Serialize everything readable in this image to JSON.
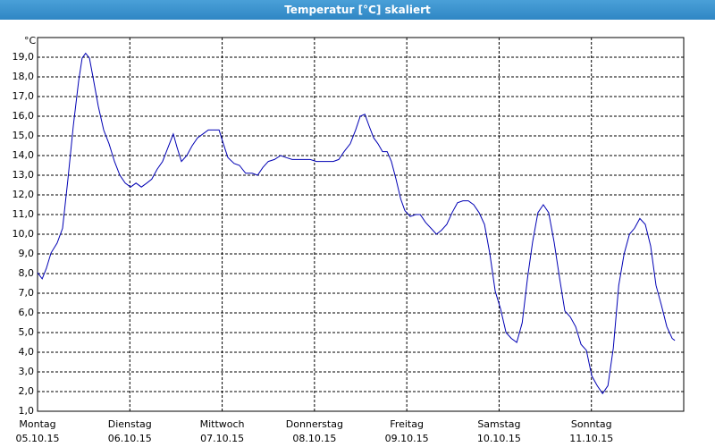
{
  "chart_data": {
    "type": "line",
    "title": "Temperatur [°C] skaliert",
    "y_unit": "°C",
    "grid": true,
    "ylim": [
      1,
      20
    ],
    "xlim": [
      0,
      168
    ],
    "yticks": [
      {
        "value": 1,
        "label": "1,0"
      },
      {
        "value": 2,
        "label": "2,0"
      },
      {
        "value": 3,
        "label": "3,0"
      },
      {
        "value": 4,
        "label": "4,0"
      },
      {
        "value": 5,
        "label": "5,0"
      },
      {
        "value": 6,
        "label": "6,0"
      },
      {
        "value": 7,
        "label": "7,0"
      },
      {
        "value": 8,
        "label": "8,0"
      },
      {
        "value": 9,
        "label": "9,0"
      },
      {
        "value": 10,
        "label": "10,0"
      },
      {
        "value": 11,
        "label": "11,0"
      },
      {
        "value": 12,
        "label": "12,0"
      },
      {
        "value": 13,
        "label": "13,0"
      },
      {
        "value": 14,
        "label": "14,0"
      },
      {
        "value": 15,
        "label": "15,0"
      },
      {
        "value": 16,
        "label": "16,0"
      },
      {
        "value": 17,
        "label": "17,0"
      },
      {
        "value": 18,
        "label": "18,0"
      },
      {
        "value": 19,
        "label": "19,0"
      }
    ],
    "xticks": [
      {
        "value": 0,
        "label": "Montag"
      },
      {
        "value": 24,
        "label": "Dienstag"
      },
      {
        "value": 48,
        "label": "Mittwoch"
      },
      {
        "value": 72,
        "label": "Donnerstag"
      },
      {
        "value": 96,
        "label": "Freitag"
      },
      {
        "value": 120,
        "label": "Samstag"
      },
      {
        "value": 144,
        "label": "Sonntag"
      }
    ],
    "xtick_dates": [
      "05.10.15",
      "06.10.15",
      "07.10.15",
      "08.10.15",
      "09.10.15",
      "10.10.15",
      "11.10.15"
    ],
    "x": [
      0,
      1.2,
      2.3,
      3.5,
      5.1,
      6.5,
      7.9,
      9.3,
      10.7,
      11.6,
      12.5,
      13.5,
      14.6,
      15.8,
      17.2,
      18.6,
      20.0,
      21.4,
      22.8,
      24.2,
      25.6,
      27.0,
      28.4,
      29.7,
      31.1,
      32.5,
      33.9,
      35.3,
      36.3,
      37.4,
      38.8,
      40.2,
      41.6,
      43.0,
      44.4,
      46.0,
      47.2,
      48.3,
      49.5,
      51.1,
      52.5,
      54.1,
      55.8,
      57.2,
      58.6,
      60.0,
      61.6,
      63.2,
      64.6,
      66.2,
      67.9,
      69.3,
      70.9,
      72.5,
      73.9,
      75.5,
      76.9,
      78.3,
      79.7,
      81.3,
      82.7,
      83.9,
      85.1,
      86.2,
      87.4,
      88.5,
      89.7,
      90.9,
      92.0,
      93.2,
      94.4,
      95.5,
      96.9,
      98.3,
      99.5,
      100.9,
      102.3,
      103.7,
      105.0,
      106.4,
      107.8,
      109.2,
      110.6,
      112.0,
      113.4,
      114.8,
      116.2,
      117.6,
      119.0,
      120.4,
      121.8,
      123.2,
      124.6,
      126.0,
      127.4,
      128.7,
      130.1,
      131.5,
      132.9,
      134.3,
      135.7,
      137.1,
      138.5,
      139.9,
      141.3,
      142.7,
      144.1,
      145.5,
      146.9,
      148.3,
      149.7,
      151.1,
      152.5,
      153.9,
      155.2,
      156.6,
      158.0,
      159.4,
      160.8,
      162.2,
      163.6,
      165.0,
      165.7
    ],
    "series": [
      {
        "name": "Temperatur",
        "color": "#0000b4",
        "values": [
          8.05,
          7.73,
          8.27,
          9.05,
          9.55,
          10.3,
          12.8,
          15.5,
          17.8,
          18.95,
          19.2,
          18.95,
          17.8,
          16.5,
          15.3,
          14.6,
          13.7,
          13.0,
          12.6,
          12.4,
          12.6,
          12.4,
          12.6,
          12.8,
          13.3,
          13.7,
          14.4,
          15.1,
          14.4,
          13.7,
          14.0,
          14.5,
          14.9,
          15.1,
          15.3,
          15.3,
          15.3,
          14.6,
          13.9,
          13.6,
          13.5,
          13.1,
          13.1,
          13.0,
          13.4,
          13.7,
          13.8,
          14.0,
          13.9,
          13.8,
          13.8,
          13.8,
          13.8,
          13.7,
          13.7,
          13.7,
          13.7,
          13.8,
          14.2,
          14.6,
          15.3,
          16.0,
          16.1,
          15.5,
          14.9,
          14.6,
          14.2,
          14.2,
          13.7,
          12.8,
          11.8,
          11.2,
          10.9,
          11.0,
          11.0,
          10.6,
          10.3,
          10.0,
          10.2,
          10.5,
          11.1,
          11.6,
          11.7,
          11.7,
          11.5,
          11.1,
          10.5,
          9.0,
          7.1,
          6.2,
          5.0,
          4.7,
          4.5,
          5.5,
          7.8,
          9.6,
          11.1,
          11.5,
          11.1,
          9.6,
          7.8,
          6.1,
          5.8,
          5.3,
          4.4,
          4.1,
          2.8,
          2.3,
          1.9,
          2.3,
          4.2,
          7.4,
          9.0,
          10.0,
          10.3,
          10.8,
          10.5,
          9.4,
          7.4,
          6.4,
          5.3,
          4.7,
          4.6
        ]
      }
    ]
  }
}
